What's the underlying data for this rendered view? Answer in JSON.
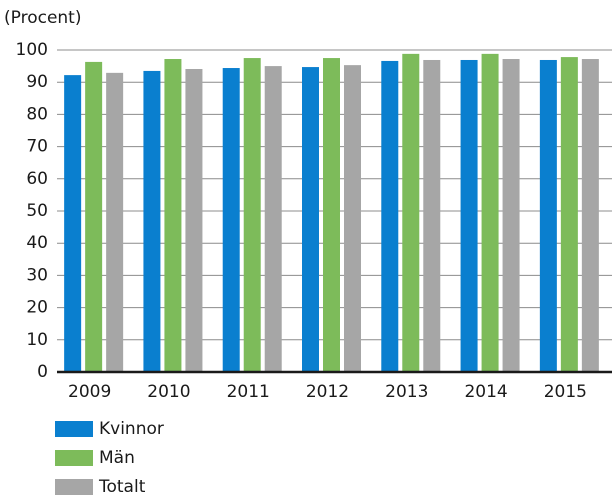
{
  "chart_data": {
    "type": "bar",
    "y_axis_label": "(Procent)",
    "categories": [
      "2009",
      "2010",
      "2011",
      "2012",
      "2013",
      "2014",
      "2015"
    ],
    "series": [
      {
        "name": "Kvinnor",
        "color": "#0a7fcf",
        "values": [
          92.2,
          93.5,
          94.4,
          94.7,
          96.6,
          96.9,
          96.9
        ]
      },
      {
        "name": "Män",
        "color": "#7dbb5a",
        "values": [
          96.3,
          97.2,
          97.5,
          97.5,
          98.8,
          98.8,
          97.8
        ]
      },
      {
        "name": "Totalt",
        "color": "#a6a6a6",
        "values": [
          92.9,
          94.1,
          95.0,
          95.3,
          96.9,
          97.2,
          97.2
        ]
      }
    ],
    "ylim": [
      0,
      100
    ],
    "yticks": [
      0,
      10,
      20,
      30,
      40,
      50,
      60,
      70,
      80,
      90,
      100
    ],
    "grid": true,
    "legend": "bottom-left"
  }
}
